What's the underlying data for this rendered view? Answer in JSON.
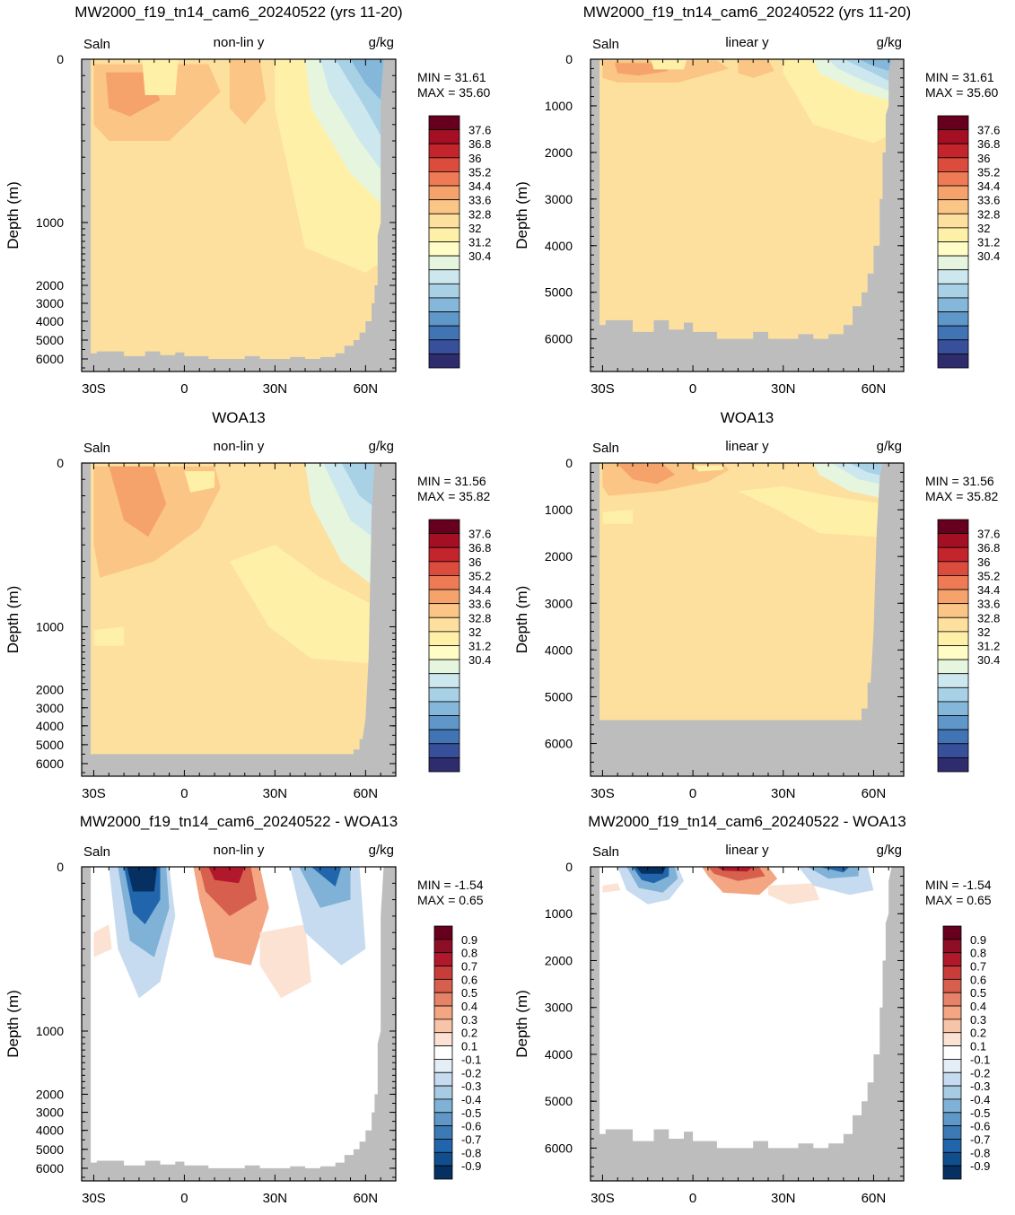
{
  "panel_titles": {
    "model": "MW2000_f19_tn14_cam6_20240522 (yrs 11-20)",
    "obs": "WOA13",
    "diff": "MW2000_f19_tn14_cam6_20240522 - WOA13"
  },
  "labels": {
    "variable": "Saln",
    "units": "g/kg",
    "nonlin": "non-lin y",
    "linear": "linear y",
    "min_prefix": "MIN =",
    "max_prefix": "MAX =",
    "ylabel": "Depth (m)"
  },
  "stats": {
    "model": {
      "min": "31.61",
      "max": "35.60"
    },
    "obs": {
      "min": "31.56",
      "max": "35.82"
    },
    "diff": {
      "min": "-1.54",
      "max": "0.65"
    }
  },
  "x_ticks": [
    "30S",
    "0",
    "30N",
    "60N"
  ],
  "y_ticks_nonlin": [
    "0",
    "1000",
    "2000",
    "3000",
    "4000",
    "5000",
    "6000"
  ],
  "y_ticks_linear": [
    "0",
    "1000",
    "2000",
    "3000",
    "4000",
    "5000",
    "6000"
  ],
  "colorbar_abs": {
    "labels": [
      "37.6",
      "36.8",
      "36",
      "35.2",
      "34.4",
      "33.6",
      "32.8",
      "32",
      "31.2",
      "30.4"
    ],
    "colors": [
      "#67001f",
      "#a50f23",
      "#c4242c",
      "#dc4c3c",
      "#ef7b56",
      "#f5a36b",
      "#fbc585",
      "#fde09d",
      "#fff0a8",
      "#fffcc6",
      "#e6f5de",
      "#cce8ee",
      "#a9d1e6",
      "#84b7d9",
      "#5e97c8",
      "#4174b4",
      "#38509b",
      "#2f2c6d"
    ]
  },
  "colorbar_diff": {
    "labels": [
      "0.9",
      "0.8",
      "0.7",
      "0.6",
      "0.5",
      "0.4",
      "0.3",
      "0.2",
      "0.1",
      "-0.1",
      "-0.2",
      "-0.3",
      "-0.4",
      "-0.5",
      "-0.6",
      "-0.7",
      "-0.8",
      "-0.9"
    ],
    "colors": [
      "#67001f",
      "#8e0e25",
      "#b2182b",
      "#c83c3a",
      "#d6604d",
      "#e58267",
      "#f4a582",
      "#f8c4a8",
      "#fce2d3",
      "#ffffff",
      "#e3eef6",
      "#c6dbef",
      "#a6cbe3",
      "#7fb2d6",
      "#5e97c8",
      "#3c7ab6",
      "#2166ac",
      "#104e8d",
      "#053061"
    ]
  },
  "chart_data": [
    {
      "type": "heatmap",
      "title": "MW2000_f19_tn14_cam6_20240522 (yrs 11-20)",
      "subtitle": "non-lin y",
      "variable": "Saln",
      "units": "g/kg",
      "xlabel": "",
      "ylabel": "Depth (m)",
      "xlim": [
        "34S",
        "70N"
      ],
      "ylim": [
        6700,
        0
      ],
      "y_scale": "non-linear",
      "min": 31.61,
      "max": 35.6
    },
    {
      "type": "heatmap",
      "title": "MW2000_f19_tn14_cam6_20240522 (yrs 11-20)",
      "subtitle": "linear y",
      "variable": "Saln",
      "units": "g/kg",
      "xlabel": "",
      "ylabel": "Depth (m)",
      "xlim": [
        "34S",
        "70N"
      ],
      "ylim": [
        6700,
        0
      ],
      "y_scale": "linear",
      "min": 31.61,
      "max": 35.6
    },
    {
      "type": "heatmap",
      "title": "WOA13",
      "subtitle": "non-lin y",
      "variable": "Saln",
      "units": "g/kg",
      "xlabel": "",
      "ylabel": "Depth (m)",
      "xlim": [
        "34S",
        "70N"
      ],
      "ylim": [
        6700,
        0
      ],
      "y_scale": "non-linear",
      "min": 31.56,
      "max": 35.82
    },
    {
      "type": "heatmap",
      "title": "WOA13",
      "subtitle": "linear y",
      "variable": "Saln",
      "units": "g/kg",
      "xlabel": "",
      "ylabel": "Depth (m)",
      "xlim": [
        "34S",
        "70N"
      ],
      "ylim": [
        6700,
        0
      ],
      "y_scale": "linear",
      "min": 31.56,
      "max": 35.82
    },
    {
      "type": "heatmap",
      "title": "MW2000_f19_tn14_cam6_20240522 - WOA13",
      "subtitle": "non-lin y",
      "variable": "Saln",
      "units": "g/kg",
      "xlabel": "",
      "ylabel": "Depth (m)",
      "xlim": [
        "34S",
        "70N"
      ],
      "ylim": [
        6700,
        0
      ],
      "y_scale": "non-linear",
      "min": -1.54,
      "max": 0.65
    },
    {
      "type": "heatmap",
      "title": "MW2000_f19_tn14_cam6_20240522 - WOA13",
      "subtitle": "linear y",
      "variable": "Saln",
      "units": "g/kg",
      "xlabel": "",
      "ylabel": "Depth (m)",
      "xlim": [
        "34S",
        "70N"
      ],
      "ylim": [
        6700,
        0
      ],
      "y_scale": "linear",
      "min": -1.54,
      "max": 0.65
    }
  ]
}
